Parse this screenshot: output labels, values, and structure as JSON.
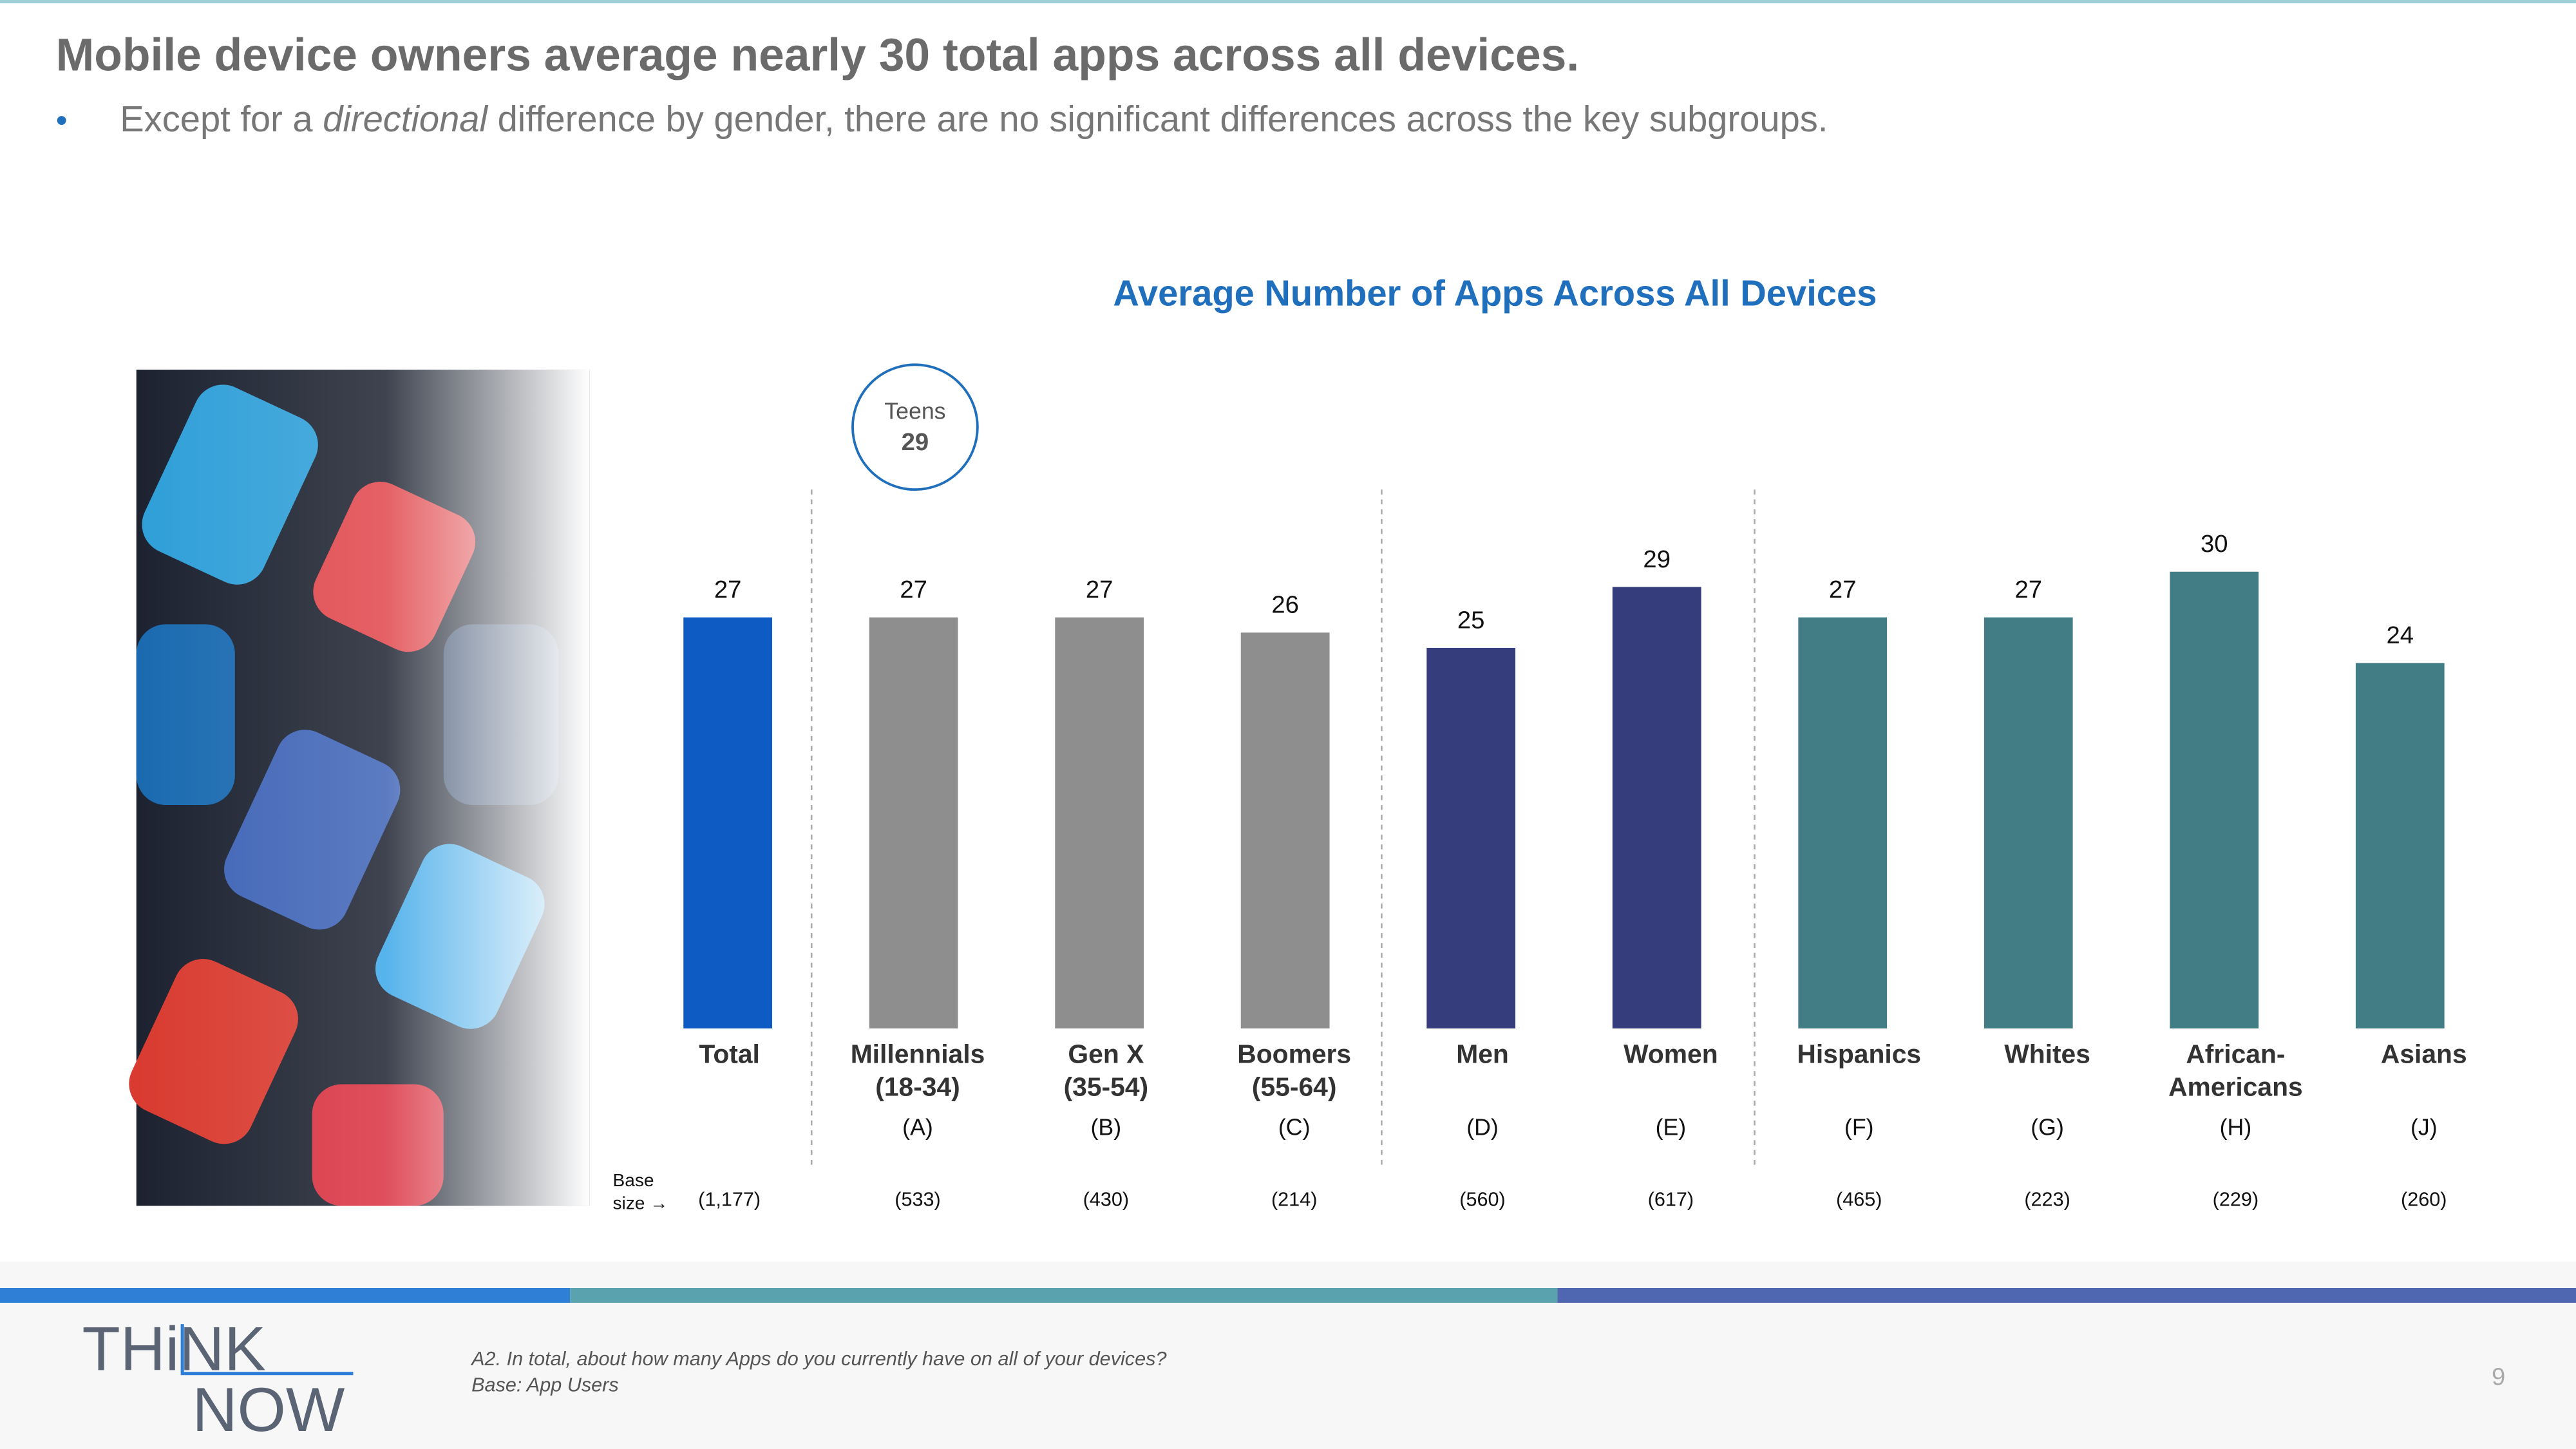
{
  "title": "Mobile device owners average nearly 30 total apps across all devices.",
  "bullet": [
    "Except for a ",
    "directional",
    " difference by gender, there are no significant differences across the key subgroups."
  ],
  "chart_data": {
    "type": "bar",
    "title": "Average Number of Apps Across All Devices",
    "categories": [
      [
        "Total"
      ],
      [
        "Millennials",
        "(18-34)"
      ],
      [
        "Gen X",
        "(35-54)"
      ],
      [
        "Boomers",
        "(55-64)"
      ],
      [
        "Men"
      ],
      [
        "Women"
      ],
      [
        "Hispanics"
      ],
      [
        "Whites"
      ],
      [
        "African-",
        "Americans"
      ],
      [
        "Asians"
      ]
    ],
    "letters": [
      null,
      "(A)",
      "(B)",
      "(C)",
      "(D)",
      "(E)",
      "(F)",
      "(G)",
      "(H)",
      "(J)"
    ],
    "values": [
      27,
      27,
      27,
      26,
      25,
      29,
      27,
      27,
      30,
      24
    ],
    "colors": [
      "#0f5bc4",
      "#8e8e8e",
      "#8e8e8e",
      "#8e8e8e",
      "#363d7c",
      "#363d7c",
      "#427c84",
      "#427c84",
      "#427c84",
      "#427c84"
    ],
    "ylim": [
      0,
      30
    ],
    "base_size_label": [
      "Base",
      "size →"
    ],
    "base_sizes": [
      "(1,177)",
      "(533)",
      "(430)",
      "(214)",
      "(560)",
      "(617)",
      "(465)",
      "(223)",
      "(229)",
      "(260)"
    ],
    "callout": {
      "label": "Teens",
      "value": 29
    }
  },
  "footer": {
    "logo": [
      "THiNK",
      "NOW"
    ],
    "notes": [
      "A2. In total, about how many Apps do you currently have on all of your devices?",
      "Base: App Users"
    ],
    "page": "9"
  }
}
